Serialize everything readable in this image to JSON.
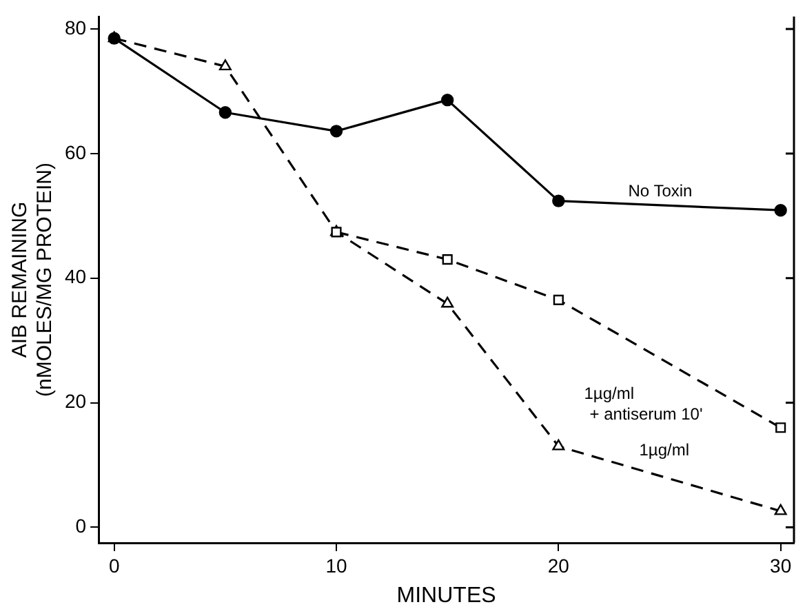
{
  "chart_data": {
    "type": "line",
    "xlabel": "MINUTES",
    "ylabel": "AIB REMAINING\n(nMOLES/MG PROTEIN)",
    "xlim": [
      -0.7,
      30.6
    ],
    "xticks": [
      0,
      10,
      20,
      30
    ],
    "ylim": [
      -2.5,
      82
    ],
    "yticks": [
      0,
      20,
      40,
      60,
      80
    ],
    "grid": false,
    "legend": false,
    "series": [
      {
        "name": "No Toxin",
        "color": "#000000",
        "marker": "circle",
        "line_style": "solid",
        "x": [
          0,
          5,
          10,
          15,
          20,
          30
        ],
        "values": [
          78.5,
          66.6,
          63.6,
          68.6,
          52.4,
          50.9
        ]
      },
      {
        "name": "1µg/ml\n+ antiserum 10'",
        "color": "#000000",
        "marker": "square",
        "line_style": "dashed",
        "x": [
          10,
          15,
          20,
          30
        ],
        "values": [
          47.4,
          43.0,
          36.5,
          16
        ]
      },
      {
        "name": "1µg/ml",
        "color": "#000000",
        "marker": "triangle",
        "line_style": "dashed",
        "x": [
          0,
          5,
          10,
          15,
          20,
          30
        ],
        "values": [
          78.5,
          74,
          47.4,
          35.9,
          13,
          2.6
        ]
      }
    ]
  }
}
